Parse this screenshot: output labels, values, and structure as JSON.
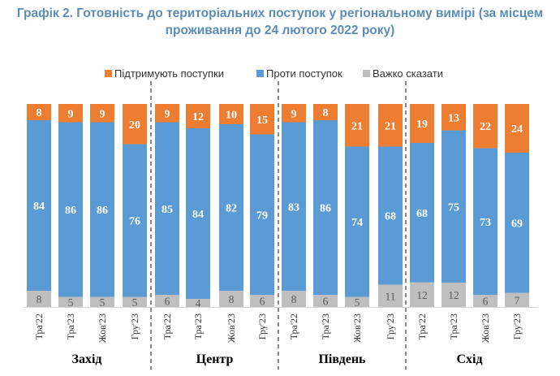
{
  "title_line1": "Графік 2. Готовність до територіальних поступок у регіональному вимірі (за місцем",
  "title_line2": "проживання до 24 лютого 2022 року)",
  "chart_data": {
    "type": "bar",
    "stacked": true,
    "series": [
      {
        "name": "Підтримують поступки",
        "color": "#ed7d31",
        "values": [
          8,
          9,
          9,
          20,
          9,
          12,
          10,
          15,
          9,
          8,
          21,
          21,
          19,
          13,
          22,
          24
        ]
      },
      {
        "name": "Проти поступок",
        "color": "#5b9bd5",
        "values": [
          84,
          86,
          86,
          76,
          85,
          84,
          82,
          79,
          83,
          86,
          74,
          68,
          68,
          75,
          73,
          69
        ]
      },
      {
        "name": "Важко сказати",
        "color": "#bfbfbf",
        "values": [
          8,
          5,
          5,
          5,
          6,
          4,
          8,
          6,
          8,
          6,
          5,
          11,
          12,
          12,
          6,
          7
        ]
      }
    ],
    "stack_order_bottom_to_top": [
      "Важко сказати",
      "Проти поступок",
      "Підтримують поступки"
    ],
    "categories": [
      "Тра'22",
      "Тра'23",
      "Жов'23",
      "Гру'23",
      "Тра'22",
      "Тра'23",
      "Жов'23",
      "Гру'23",
      "Тра'22",
      "Тра'23",
      "Жов'23",
      "Гру'23",
      "Тра'22",
      "Тра'23",
      "Жов'23",
      "Гру'23"
    ],
    "groups": [
      {
        "name": "Захід",
        "size": 4
      },
      {
        "name": "Центр",
        "size": 4
      },
      {
        "name": "Південь",
        "size": 4
      },
      {
        "name": "Схід",
        "size": 4
      }
    ],
    "legend_position": "top",
    "ylim": [
      0,
      100
    ]
  }
}
